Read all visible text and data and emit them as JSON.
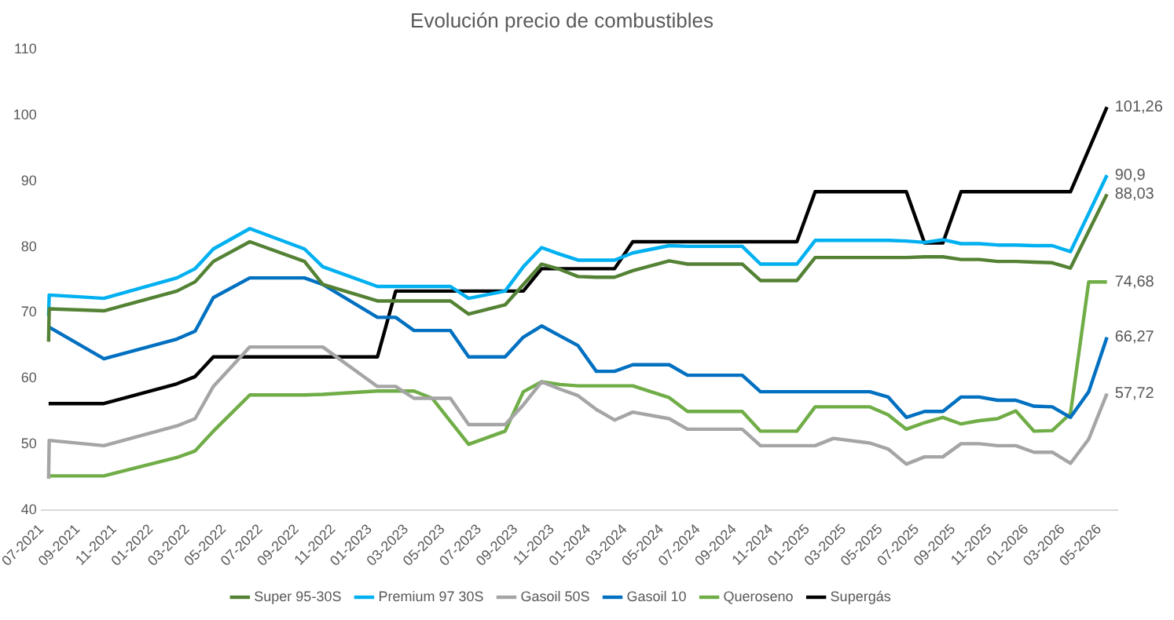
{
  "chart_data": {
    "type": "line",
    "title": "Evolución precio de combustibles",
    "x": [
      "2021-07-13",
      "2021-07-14",
      "2021-10-14",
      "2022-02-14",
      "2022-03-14",
      "2022-04-14",
      "2022-06-14",
      "2022-09-14",
      "2022-10-14",
      "2023-01-14",
      "2023-02-14",
      "2023-03-14",
      "2023-04-14",
      "2023-05-14",
      "2023-06-14",
      "2023-08-14",
      "2023-09-14",
      "2023-10-14",
      "2023-11-14",
      "2023-12-14",
      "2024-01-14",
      "2024-02-14",
      "2024-03-14",
      "2024-05-14",
      "2024-06-14",
      "2024-09-14",
      "2024-10-14",
      "2024-12-14",
      "2025-01-14",
      "2025-02-14",
      "2025-04-14",
      "2025-05-14",
      "2025-06-14",
      "2025-07-14",
      "2025-08-14",
      "2025-09-14",
      "2025-10-14",
      "2025-11-14",
      "2025-12-14",
      "2026-01-14",
      "2026-02-14",
      "2026-03-14",
      "2026-04-14",
      "2026-05-14"
    ],
    "series": [
      {
        "name": "Super 95-30S",
        "color": "#548235",
        "values": [
          65.6,
          70.6,
          70.3,
          73.3,
          74.7,
          77.8,
          80.8,
          77.8,
          74.3,
          71.8,
          71.8,
          71.8,
          71.8,
          71.8,
          69.8,
          71.2,
          74.3,
          77.4,
          76.6,
          75.5,
          75.4,
          75.4,
          76.4,
          77.9,
          77.4,
          77.4,
          74.9,
          74.9,
          78.4,
          78.4,
          78.4,
          78.4,
          78.4,
          78.5,
          78.5,
          78.1,
          78.1,
          77.8,
          77.8,
          77.7,
          77.6,
          76.8,
          82.4,
          88.03
        ],
        "value_labels": [
          null,
          null,
          null,
          null,
          null,
          null,
          null,
          null,
          null,
          null,
          null,
          null,
          null,
          null,
          null,
          null,
          null,
          null,
          null,
          null,
          null,
          null,
          null,
          null,
          null,
          null,
          null,
          null,
          null,
          null,
          null,
          null,
          null,
          null,
          null,
          null,
          null,
          null,
          null,
          null,
          null,
          null,
          null,
          "88,03"
        ]
      },
      {
        "name": "Premium 97 30S",
        "color": "#00b0f0",
        "values": [
          69.5,
          72.7,
          72.2,
          75.3,
          76.7,
          79.7,
          82.8,
          79.7,
          77.0,
          74.0,
          74.0,
          74.0,
          74.0,
          74.0,
          72.2,
          73.3,
          77.0,
          79.9,
          78.9,
          78.0,
          78.0,
          78.0,
          79.1,
          80.2,
          80.1,
          80.1,
          77.4,
          77.4,
          81.0,
          81.0,
          81.0,
          81.0,
          80.9,
          80.7,
          81.1,
          80.5,
          80.5,
          80.3,
          80.3,
          80.2,
          80.2,
          79.3,
          85.1,
          90.9
        ],
        "value_labels": [
          null,
          null,
          null,
          null,
          null,
          null,
          null,
          null,
          null,
          null,
          null,
          null,
          null,
          null,
          null,
          null,
          null,
          null,
          null,
          null,
          null,
          null,
          null,
          null,
          null,
          null,
          null,
          null,
          null,
          null,
          null,
          null,
          null,
          null,
          null,
          null,
          null,
          null,
          null,
          null,
          null,
          null,
          null,
          "90,9"
        ]
      },
      {
        "name": "Gasoil 50S",
        "color": "#a5a5a5",
        "values": [
          44.8,
          50.6,
          49.8,
          52.8,
          53.9,
          58.8,
          64.8,
          64.8,
          64.8,
          58.8,
          58.8,
          57.0,
          57.0,
          57.0,
          53.0,
          53.0,
          56.0,
          59.5,
          58.4,
          57.4,
          55.3,
          53.7,
          54.9,
          53.9,
          52.3,
          52.3,
          49.8,
          49.8,
          49.8,
          50.9,
          50.2,
          49.3,
          47.0,
          48.1,
          48.1,
          50.1,
          50.1,
          49.8,
          49.8,
          48.8,
          48.8,
          47.1,
          50.8,
          57.72
        ],
        "value_labels": [
          null,
          null,
          null,
          null,
          null,
          null,
          null,
          null,
          null,
          null,
          null,
          null,
          null,
          null,
          null,
          null,
          null,
          null,
          null,
          null,
          null,
          null,
          null,
          null,
          null,
          null,
          null,
          null,
          null,
          null,
          null,
          null,
          null,
          null,
          null,
          null,
          null,
          null,
          null,
          null,
          null,
          null,
          null,
          "57,72"
        ]
      },
      {
        "name": "Gasoil 10",
        "color": "#0070c0",
        "values": [
          67.8,
          67.8,
          63.0,
          66.0,
          67.2,
          72.3,
          75.3,
          75.3,
          74.3,
          69.3,
          69.3,
          67.3,
          67.3,
          67.3,
          63.3,
          63.3,
          66.3,
          68.0,
          66.5,
          65.0,
          61.1,
          61.1,
          62.1,
          62.1,
          60.5,
          60.5,
          58.0,
          58.0,
          58.0,
          58.0,
          58.0,
          57.2,
          54.1,
          55.0,
          55.0,
          57.2,
          57.2,
          56.7,
          56.7,
          55.8,
          55.7,
          54.1,
          58.0,
          66.27
        ],
        "value_labels": [
          null,
          null,
          null,
          null,
          null,
          null,
          null,
          null,
          null,
          null,
          null,
          null,
          null,
          null,
          null,
          null,
          null,
          null,
          null,
          null,
          null,
          null,
          null,
          null,
          null,
          null,
          null,
          null,
          null,
          null,
          null,
          null,
          null,
          null,
          null,
          null,
          null,
          null,
          null,
          null,
          null,
          null,
          null,
          "66,27"
        ]
      },
      {
        "name": "Queroseno",
        "color": "#70ad47",
        "values": [
          44.8,
          45.2,
          45.2,
          48.0,
          49.0,
          52.0,
          57.5,
          57.5,
          57.6,
          58.1,
          58.1,
          58.1,
          57.0,
          53.5,
          50.0,
          52.0,
          58.0,
          59.5,
          59.1,
          58.9,
          58.9,
          58.9,
          58.9,
          57.1,
          55.0,
          55.0,
          52.0,
          52.0,
          55.7,
          55.7,
          55.7,
          54.5,
          52.3,
          53.3,
          54.1,
          53.1,
          53.6,
          53.9,
          55.1,
          52.0,
          52.1,
          54.7,
          74.68,
          74.68
        ],
        "value_labels": [
          null,
          null,
          null,
          null,
          null,
          null,
          null,
          null,
          null,
          null,
          null,
          null,
          null,
          null,
          null,
          null,
          null,
          null,
          null,
          null,
          null,
          null,
          null,
          null,
          null,
          null,
          null,
          null,
          null,
          null,
          null,
          null,
          null,
          null,
          null,
          null,
          null,
          null,
          null,
          null,
          null,
          null,
          null,
          "74,68"
        ]
      },
      {
        "name": "Supergás",
        "color": "#000000",
        "values": [
          56.2,
          56.2,
          56.2,
          59.2,
          60.3,
          63.3,
          63.3,
          63.3,
          63.3,
          63.3,
          73.3,
          73.3,
          73.3,
          73.3,
          73.3,
          73.3,
          73.3,
          76.7,
          76.7,
          76.7,
          76.7,
          76.7,
          80.8,
          80.8,
          80.8,
          80.8,
          80.8,
          80.8,
          88.4,
          88.4,
          88.4,
          88.4,
          88.4,
          80.6,
          80.6,
          88.4,
          88.4,
          88.4,
          88.4,
          88.4,
          88.4,
          88.4,
          94.8,
          101.26
        ],
        "value_labels": [
          null,
          null,
          null,
          null,
          null,
          null,
          null,
          null,
          null,
          null,
          null,
          null,
          null,
          null,
          null,
          null,
          null,
          null,
          null,
          null,
          null,
          null,
          null,
          null,
          null,
          null,
          null,
          null,
          null,
          null,
          null,
          null,
          null,
          null,
          null,
          null,
          null,
          null,
          null,
          null,
          null,
          null,
          null,
          "101,26"
        ]
      }
    ],
    "xlim": [
      "2021-07",
      "2026-06"
    ],
    "xticks": [
      {
        "value": "2021-07",
        "label": "07-2021"
      },
      {
        "value": "2021-09",
        "label": "09-2021"
      },
      {
        "value": "2021-11",
        "label": "11-2021"
      },
      {
        "value": "2022-01",
        "label": "01-2022"
      },
      {
        "value": "2022-03",
        "label": "03-2022"
      },
      {
        "value": "2022-05",
        "label": "05-2022"
      },
      {
        "value": "2022-07",
        "label": "07-2022"
      },
      {
        "value": "2022-09",
        "label": "09-2022"
      },
      {
        "value": "2022-11",
        "label": "11-2022"
      },
      {
        "value": "2023-01",
        "label": "01-2023"
      },
      {
        "value": "2023-03",
        "label": "03-2023"
      },
      {
        "value": "2023-05",
        "label": "05-2023"
      },
      {
        "value": "2023-07",
        "label": "07-2023"
      },
      {
        "value": "2023-09",
        "label": "09-2023"
      },
      {
        "value": "2023-11",
        "label": "11-2023"
      },
      {
        "value": "2024-01",
        "label": "01-2024"
      },
      {
        "value": "2024-03",
        "label": "03-2024"
      },
      {
        "value": "2024-05",
        "label": "05-2024"
      },
      {
        "value": "2024-07",
        "label": "07-2024"
      },
      {
        "value": "2024-09",
        "label": "09-2024"
      },
      {
        "value": "2024-11",
        "label": "11-2024"
      },
      {
        "value": "2025-01",
        "label": "01-2025"
      },
      {
        "value": "2025-03",
        "label": "03-2025"
      },
      {
        "value": "2025-05",
        "label": "05-2025"
      },
      {
        "value": "2025-07",
        "label": "07-2025"
      },
      {
        "value": "2025-09",
        "label": "09-2025"
      },
      {
        "value": "2025-11",
        "label": "11-2025"
      },
      {
        "value": "2026-01",
        "label": "01-2026"
      },
      {
        "value": "2026-03",
        "label": "03-2026"
      },
      {
        "value": "2026-05",
        "label": "05-2026"
      }
    ],
    "ylim": [
      40,
      110
    ],
    "yticks": [
      40,
      50,
      60,
      70,
      80,
      90,
      100,
      110
    ],
    "grid": false,
    "legend": "bottom",
    "marker": "none",
    "line_style": "solid"
  }
}
